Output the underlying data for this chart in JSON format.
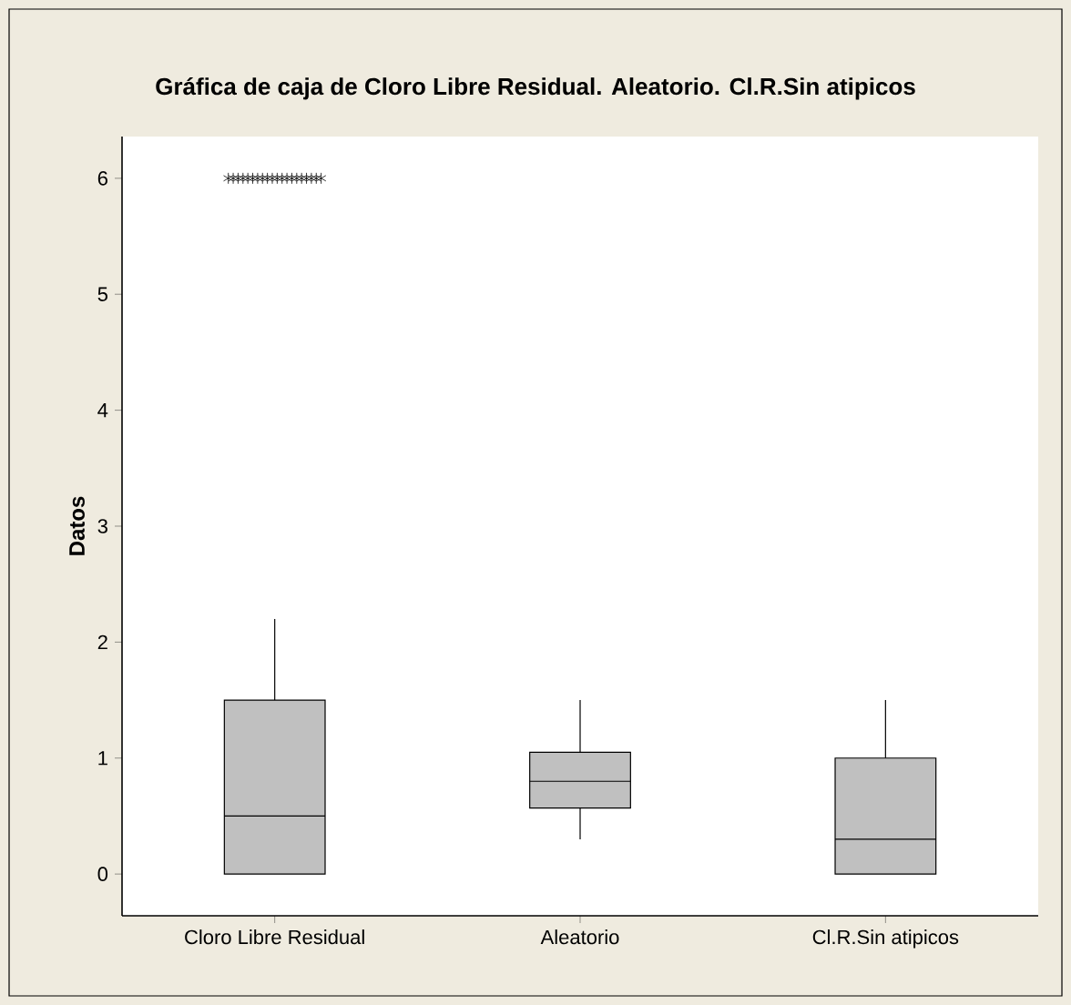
{
  "chart_data": {
    "type": "box",
    "title": "**Gráfica de caja de Cloro Libre Residual. Aleatorio. Cl.R.Sin atipicos**",
    "ylabel": "**Datos**",
    "categories": [
      "Cloro Libre Residual",
      "Aleatorio",
      "Cl.R.Sin atipicos"
    ],
    "color": "#c0c0c0",
    "ylim": [
      -0.36,
      6.36
    ],
    "yticks": [
      0,
      1,
      2,
      3,
      4,
      5,
      6
    ],
    "boxes": [
      {
        "low": 0,
        "q1": 0,
        "median": 0.5,
        "q3": 1.5,
        "high": 2.2,
        "outliers": [
          6,
          6,
          6,
          6,
          6,
          6,
          6,
          6,
          6,
          6,
          6,
          6,
          6,
          6,
          6,
          6,
          6,
          6,
          6,
          6
        ]
      },
      {
        "low": 0.3,
        "q1": 0.57,
        "median": 0.8,
        "q3": 1.05,
        "high": 1.5
      },
      {
        "low": 0,
        "q1": 0,
        "median": 0.3,
        "q3": 1.0,
        "high": 1.5
      }
    ]
  }
}
